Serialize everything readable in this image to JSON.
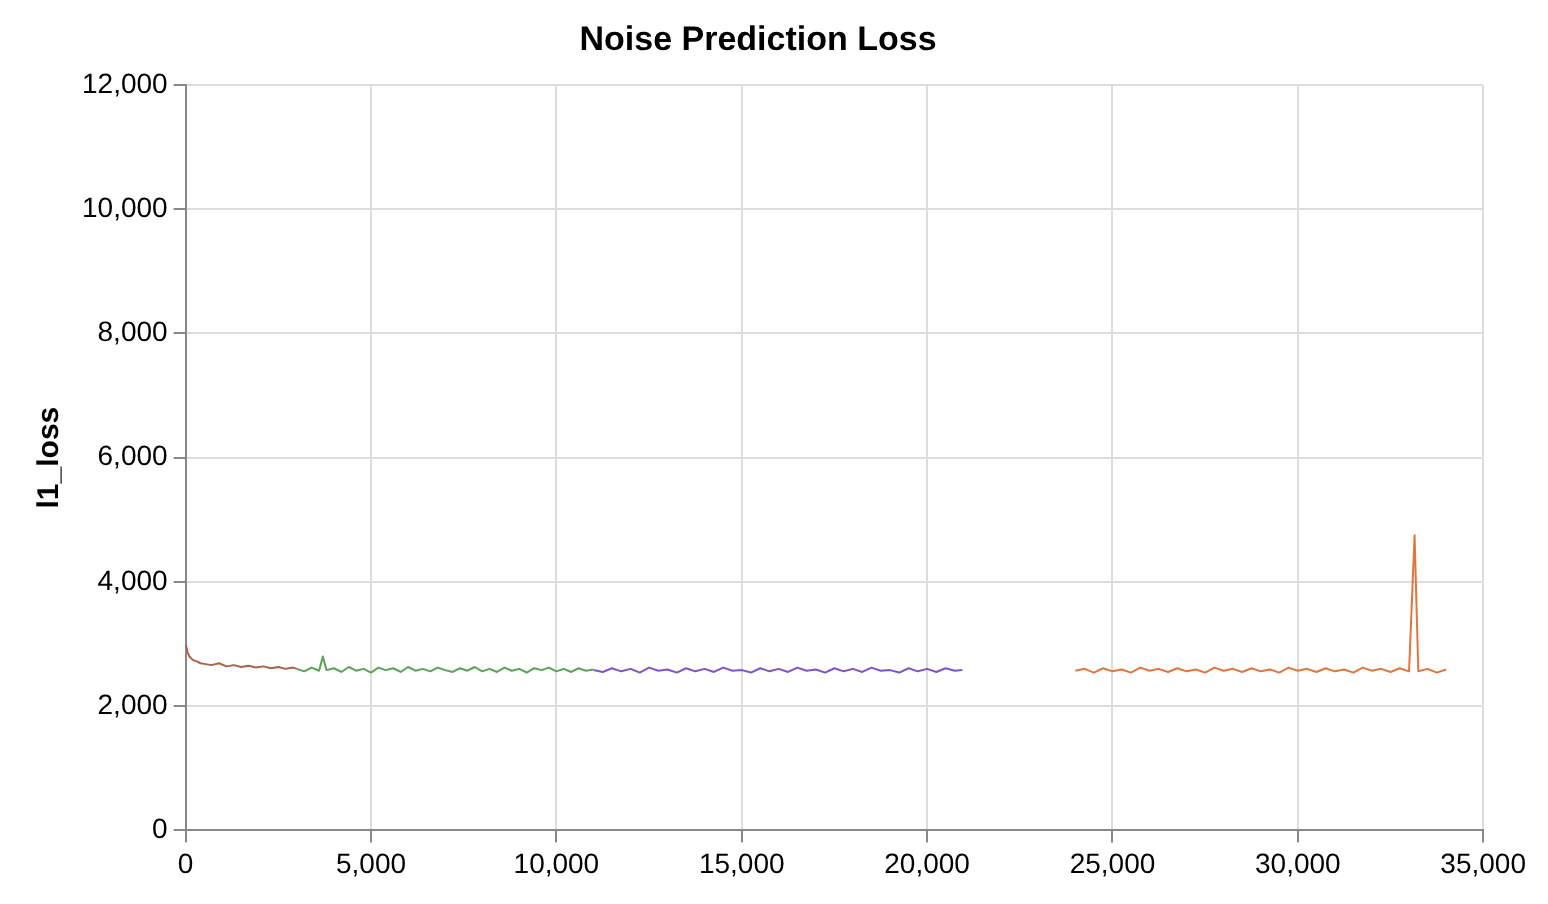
{
  "chart_data": {
    "type": "line",
    "title": "Noise Prediction Loss",
    "ylabel": "l1_loss",
    "xlim": [
      0,
      35000
    ],
    "ylim": [
      0,
      12000
    ],
    "xticks": [
      0,
      {
        "value": 5000,
        "label": "5,000"
      },
      {
        "value": 10000,
        "label": "10,000"
      },
      {
        "value": 15000,
        "label": "15,000"
      },
      {
        "value": 20000,
        "label": "20,000"
      },
      {
        "value": 25000,
        "label": "25,000"
      },
      {
        "value": 30000,
        "label": "30,000"
      },
      {
        "value": 35000,
        "label": "35,000"
      }
    ],
    "yticks": [
      0,
      {
        "value": 2000,
        "label": "2,000"
      },
      {
        "value": 4000,
        "label": "4,000"
      },
      {
        "value": 6000,
        "label": "6,000"
      },
      {
        "value": 8000,
        "label": "8,000"
      },
      {
        "value": 10000,
        "label": "10,000"
      },
      {
        "value": 12000,
        "label": "12,000"
      }
    ],
    "grid": true,
    "legend": false,
    "marker": "none",
    "line_style": "solid",
    "series": [
      {
        "color": "#a8644c",
        "x": [
          0,
          50,
          100,
          200,
          300,
          400,
          500,
          700,
          900,
          1100,
          1300,
          1500,
          1700,
          1900,
          2100,
          2300,
          2500,
          2700,
          2900,
          3000
        ],
        "values": [
          3000,
          2870,
          2800,
          2740,
          2720,
          2690,
          2680,
          2660,
          2690,
          2640,
          2660,
          2630,
          2650,
          2620,
          2640,
          2610,
          2630,
          2600,
          2620,
          2600
        ]
      },
      {
        "color": "#5aa15a",
        "x": [
          3000,
          3200,
          3400,
          3600,
          3700,
          3800,
          4000,
          4200,
          4400,
          4600,
          4800,
          5000,
          5200,
          5400,
          5600,
          5800,
          6000,
          6200,
          6400,
          6600,
          6800,
          7000,
          7200,
          7400,
          7600,
          7800,
          8000,
          8200,
          8400,
          8600,
          8800,
          9000,
          9200,
          9400,
          9600,
          9800,
          10000,
          10200,
          10400,
          10600,
          10800,
          11000
        ],
        "values": [
          2600,
          2560,
          2620,
          2570,
          2800,
          2580,
          2610,
          2550,
          2630,
          2570,
          2600,
          2540,
          2620,
          2580,
          2610,
          2550,
          2630,
          2570,
          2600,
          2560,
          2620,
          2580,
          2550,
          2610,
          2570,
          2630,
          2560,
          2600,
          2550,
          2620,
          2570,
          2600,
          2540,
          2610,
          2580,
          2620,
          2560,
          2600,
          2550,
          2610,
          2570,
          2590
        ]
      },
      {
        "color": "#7d55c7",
        "x": [
          11000,
          11250,
          11500,
          11750,
          12000,
          12250,
          12500,
          12750,
          13000,
          13250,
          13500,
          13750,
          14000,
          14250,
          14500,
          14750,
          15000,
          15250,
          15500,
          15750,
          16000,
          16250,
          16500,
          16750,
          17000,
          17250,
          17500,
          17750,
          18000,
          18250,
          18500,
          18750,
          19000,
          19250,
          19500,
          19750,
          20000,
          20250,
          20500,
          20750,
          20950
        ],
        "values": [
          2580,
          2550,
          2610,
          2560,
          2600,
          2540,
          2620,
          2570,
          2590,
          2540,
          2610,
          2560,
          2600,
          2550,
          2620,
          2570,
          2580,
          2540,
          2610,
          2560,
          2600,
          2550,
          2620,
          2570,
          2590,
          2540,
          2610,
          2560,
          2600,
          2550,
          2620,
          2570,
          2580,
          2540,
          2610,
          2560,
          2600,
          2550,
          2610,
          2570,
          2580
        ]
      },
      {
        "color": "#e0773c",
        "x": [
          24000,
          24250,
          24500,
          24750,
          25000,
          25250,
          25500,
          25750,
          26000,
          26250,
          26500,
          26750,
          27000,
          27250,
          27500,
          27750,
          28000,
          28250,
          28500,
          28750,
          29000,
          29250,
          29500,
          29750,
          30000,
          30250,
          30500,
          30750,
          31000,
          31250,
          31500,
          31750,
          32000,
          32250,
          32500,
          32750,
          33000,
          33150,
          33250,
          33500,
          33750,
          34000
        ],
        "values": [
          2570,
          2600,
          2540,
          2610,
          2560,
          2590,
          2540,
          2620,
          2570,
          2600,
          2550,
          2610,
          2560,
          2590,
          2540,
          2620,
          2570,
          2600,
          2550,
          2610,
          2560,
          2590,
          2540,
          2620,
          2570,
          2600,
          2550,
          2610,
          2560,
          2590,
          2540,
          2620,
          2570,
          2600,
          2550,
          2610,
          2560,
          4750,
          2560,
          2600,
          2540,
          2590
        ]
      }
    ]
  }
}
